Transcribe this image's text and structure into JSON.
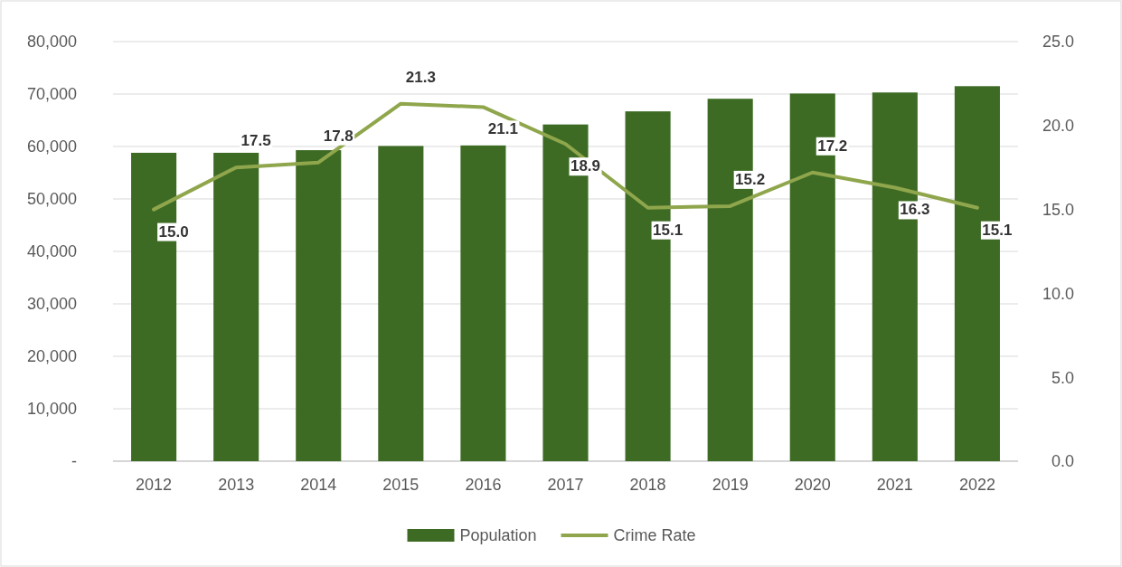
{
  "chart_data": {
    "type": "bar",
    "categories": [
      "2012",
      "2013",
      "2014",
      "2015",
      "2016",
      "2017",
      "2018",
      "2019",
      "2020",
      "2021",
      "2022"
    ],
    "series": [
      {
        "name": "Population",
        "color": "#3d6b24",
        "values": [
          58800,
          58800,
          59300,
          60100,
          60200,
          64200,
          66700,
          69100,
          70100,
          70300,
          71500
        ]
      },
      {
        "name": "Crime Rate",
        "type": "line",
        "axis": "y2",
        "color": "#8fa64c",
        "values": [
          15.0,
          17.5,
          17.8,
          21.3,
          21.1,
          18.9,
          15.1,
          15.2,
          17.2,
          16.3,
          15.1
        ],
        "value_labels": [
          "15.0",
          "17.5",
          "17.8",
          "21.3",
          "21.1",
          "18.9",
          "15.1",
          "15.2",
          "17.2",
          "16.3",
          "15.1"
        ]
      }
    ],
    "ylim": [
      0,
      80000
    ],
    "yticks": [
      {
        "value": 0,
        "label": "-"
      },
      {
        "value": 10000,
        "label": "10,000"
      },
      {
        "value": 20000,
        "label": "20,000"
      },
      {
        "value": 30000,
        "label": "30,000"
      },
      {
        "value": 40000,
        "label": "40,000"
      },
      {
        "value": 50000,
        "label": "50,000"
      },
      {
        "value": 60000,
        "label": "60,000"
      },
      {
        "value": 70000,
        "label": "70,000"
      },
      {
        "value": 80000,
        "label": "80,000"
      }
    ],
    "y2lim": [
      0,
      25
    ],
    "y2ticks": [
      {
        "value": 0,
        "label": "0.0"
      },
      {
        "value": 5,
        "label": "5.0"
      },
      {
        "value": 10,
        "label": "10.0"
      },
      {
        "value": 15,
        "label": "15.0"
      },
      {
        "value": 20,
        "label": "20.0"
      },
      {
        "value": 25,
        "label": "25.0"
      }
    ],
    "grid": "y",
    "legend": "bottom",
    "line_style": "solid",
    "marker": "none"
  }
}
